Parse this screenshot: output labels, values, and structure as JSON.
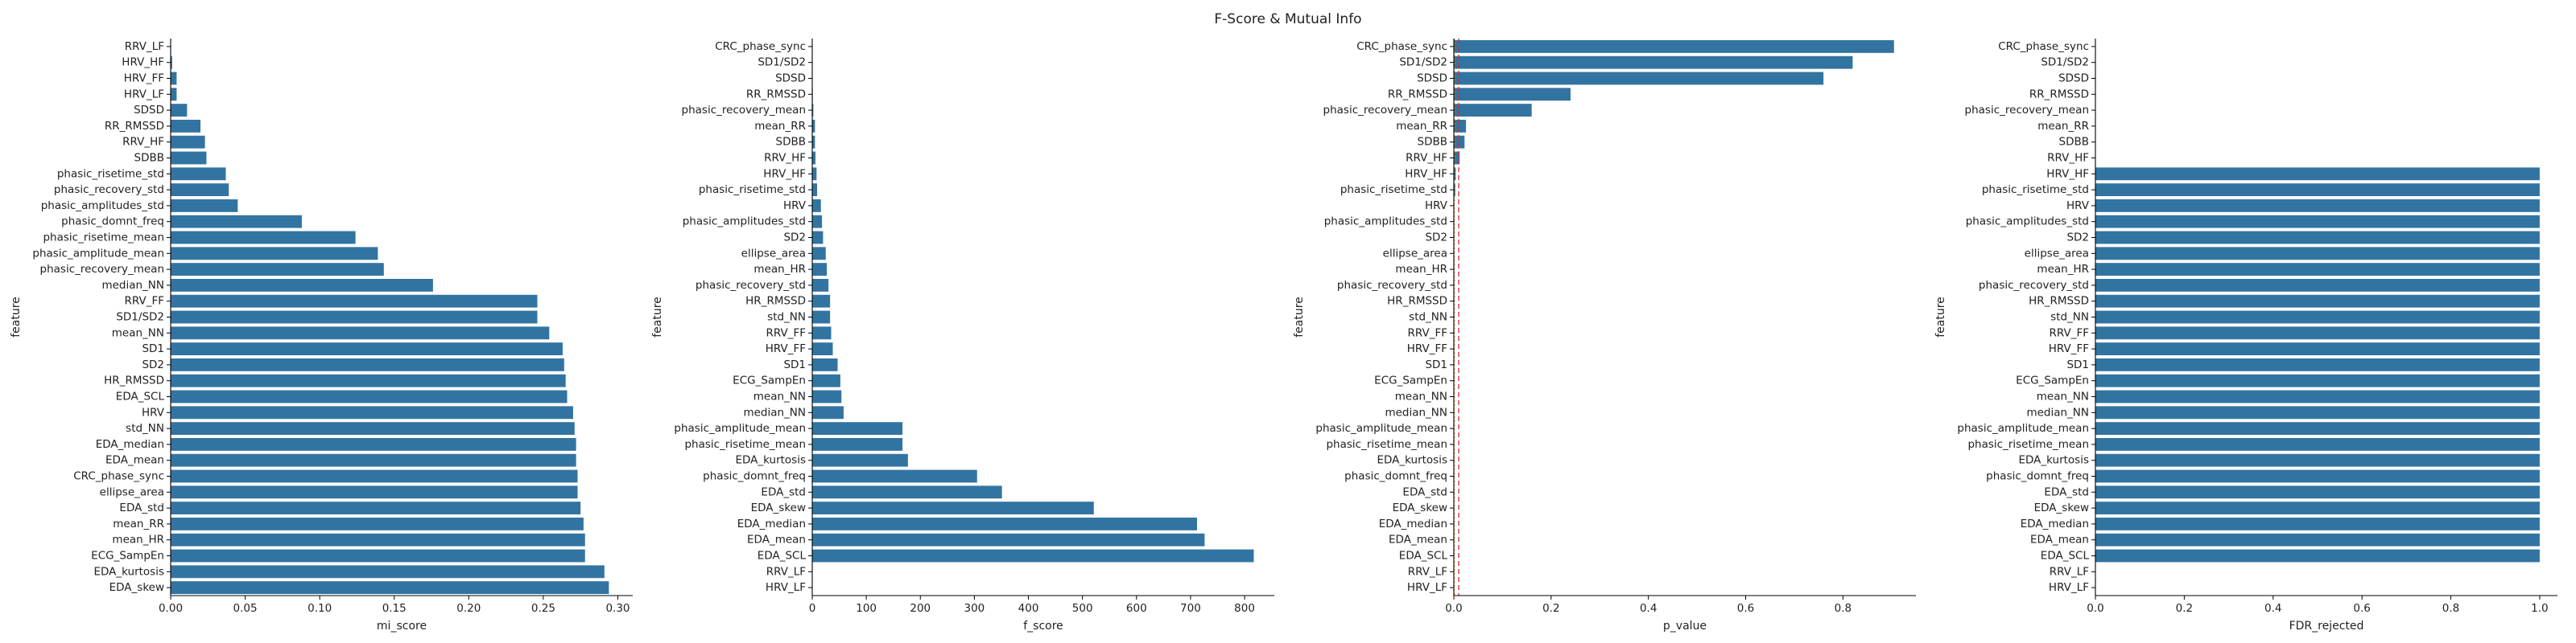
{
  "figure": {
    "title": "F-Score & Mutual Info"
  },
  "chart_data": [
    {
      "type": "bar",
      "orientation": "horizontal",
      "xlabel": "mi_score",
      "ylabel": "feature",
      "xlim": [
        0,
        0.31
      ],
      "xticks": [
        "0.00",
        "0.05",
        "0.10",
        "0.15",
        "0.20",
        "0.25",
        "0.30"
      ],
      "xtick_values": [
        0,
        0.05,
        0.1,
        0.15,
        0.2,
        0.25,
        0.3
      ],
      "color": "#3274a1",
      "categories": [
        "RRV_LF",
        "HRV_HF",
        "HRV_FF",
        "HRV_LF",
        "SDSD",
        "RR_RMSSD",
        "RRV_HF",
        "SDBB",
        "phasic_risetime_std",
        "phasic_recovery_std",
        "phasic_amplitudes_std",
        "phasic_domnt_freq",
        "phasic_risetime_mean",
        "phasic_amplitude_mean",
        "phasic_recovery_mean",
        "median_NN",
        "RRV_FF",
        "SD1/SD2",
        "mean_NN",
        "SD1",
        "SD2",
        "HR_RMSSD",
        "EDA_SCL",
        "HRV",
        "std_NN",
        "EDA_median",
        "EDA_mean",
        "CRC_phase_sync",
        "ellipse_area",
        "EDA_std",
        "mean_RR",
        "mean_HR",
        "ECG_SampEn",
        "EDA_kurtosis",
        "EDA_skew"
      ],
      "values": [
        0.0,
        0.001,
        0.004,
        0.004,
        0.011,
        0.02,
        0.023,
        0.024,
        0.037,
        0.039,
        0.045,
        0.088,
        0.124,
        0.139,
        0.143,
        0.176,
        0.246,
        0.246,
        0.254,
        0.263,
        0.264,
        0.265,
        0.266,
        0.27,
        0.271,
        0.272,
        0.272,
        0.273,
        0.273,
        0.275,
        0.277,
        0.278,
        0.278,
        0.291,
        0.294
      ]
    },
    {
      "type": "bar",
      "orientation": "horizontal",
      "xlabel": "f_score",
      "ylabel": "feature",
      "xlim": [
        0,
        855
      ],
      "xticks": [
        "0",
        "100",
        "200",
        "300",
        "400",
        "500",
        "600",
        "700",
        "800"
      ],
      "xtick_values": [
        0,
        100,
        200,
        300,
        400,
        500,
        600,
        700,
        800
      ],
      "color": "#3274a1",
      "categories": [
        "CRC_phase_sync",
        "SD1/SD2",
        "SDSD",
        "RR_RMSSD",
        "phasic_recovery_mean",
        "mean_RR",
        "SDBB",
        "RRV_HF",
        "HRV_HF",
        "phasic_risetime_std",
        "HRV",
        "phasic_amplitudes_std",
        "SD2",
        "ellipse_area",
        "mean_HR",
        "phasic_recovery_std",
        "HR_RMSSD",
        "std_NN",
        "RRV_FF",
        "HRV_FF",
        "SD1",
        "ECG_SampEn",
        "mean_NN",
        "median_NN",
        "phasic_amplitude_mean",
        "phasic_risetime_mean",
        "EDA_kurtosis",
        "phasic_domnt_freq",
        "EDA_std",
        "EDA_skew",
        "EDA_median",
        "EDA_mean",
        "EDA_SCL",
        "RRV_LF",
        "HRV_LF"
      ],
      "values": [
        0.01,
        0.1,
        0.2,
        1,
        2,
        5,
        5,
        6,
        8,
        9,
        16,
        18,
        20,
        25,
        27,
        30,
        33,
        33,
        35,
        38,
        47,
        52,
        54,
        58,
        167,
        167,
        177,
        305,
        351,
        521,
        712,
        726,
        817,
        0,
        0
      ]
    },
    {
      "type": "bar",
      "orientation": "horizontal",
      "xlabel": "p_value",
      "ylabel": "feature",
      "xlim": [
        0,
        0.95
      ],
      "xticks": [
        "0.0",
        "0.2",
        "0.4",
        "0.6",
        "0.8"
      ],
      "xtick_values": [
        0,
        0.2,
        0.4,
        0.6,
        0.8
      ],
      "color": "#3274a1",
      "reference_lines": [
        {
          "value": 0.01,
          "color": "#d62728",
          "style": "dashed"
        },
        {
          "value": 0.001,
          "color": "#ff7f0e",
          "style": "dotted"
        }
      ],
      "categories": [
        "CRC_phase_sync",
        "SD1/SD2",
        "SDSD",
        "RR_RMSSD",
        "phasic_recovery_mean",
        "mean_RR",
        "SDBB",
        "RRV_HF",
        "HRV_HF",
        "phasic_risetime_std",
        "HRV",
        "phasic_amplitudes_std",
        "SD2",
        "ellipse_area",
        "mean_HR",
        "phasic_recovery_std",
        "HR_RMSSD",
        "std_NN",
        "RRV_FF",
        "HRV_FF",
        "SD1",
        "ECG_SampEn",
        "mean_NN",
        "median_NN",
        "phasic_amplitude_mean",
        "phasic_risetime_mean",
        "EDA_kurtosis",
        "phasic_domnt_freq",
        "EDA_std",
        "EDA_skew",
        "EDA_median",
        "EDA_mean",
        "EDA_SCL",
        "RRV_LF",
        "HRV_LF"
      ],
      "values": [
        0.905,
        0.82,
        0.76,
        0.24,
        0.16,
        0.025,
        0.022,
        0.012,
        0.004,
        0.003,
        0.0001,
        0.0,
        0.0,
        0.0,
        0.0,
        0.0,
        0.0,
        0.0,
        0.0,
        0.0,
        0.0,
        0.0,
        0.0,
        0.0,
        0.0,
        0.0,
        0.0,
        0.0,
        0.0,
        0.0,
        0.0,
        0.0,
        0.0,
        0.0,
        0.0
      ]
    },
    {
      "type": "bar",
      "orientation": "horizontal",
      "xlabel": "FDR_rejected",
      "ylabel": "feature",
      "xlim": [
        0,
        1.04
      ],
      "xticks": [
        "0.0",
        "0.2",
        "0.4",
        "0.6",
        "0.8",
        "1.0"
      ],
      "xtick_values": [
        0,
        0.2,
        0.4,
        0.6,
        0.8,
        1.0
      ],
      "color": "#3274a1",
      "categories": [
        "CRC_phase_sync",
        "SD1/SD2",
        "SDSD",
        "RR_RMSSD",
        "phasic_recovery_mean",
        "mean_RR",
        "SDBB",
        "RRV_HF",
        "HRV_HF",
        "phasic_risetime_std",
        "HRV",
        "phasic_amplitudes_std",
        "SD2",
        "ellipse_area",
        "mean_HR",
        "phasic_recovery_std",
        "HR_RMSSD",
        "std_NN",
        "RRV_FF",
        "HRV_FF",
        "SD1",
        "ECG_SampEn",
        "mean_NN",
        "median_NN",
        "phasic_amplitude_mean",
        "phasic_risetime_mean",
        "EDA_kurtosis",
        "phasic_domnt_freq",
        "EDA_std",
        "EDA_skew",
        "EDA_median",
        "EDA_mean",
        "EDA_SCL",
        "RRV_LF",
        "HRV_LF"
      ],
      "values": [
        0,
        0,
        0,
        0,
        0,
        0,
        0,
        0,
        1,
        1,
        1,
        1,
        1,
        1,
        1,
        1,
        1,
        1,
        1,
        1,
        1,
        1,
        1,
        1,
        1,
        1,
        1,
        1,
        1,
        1,
        1,
        1,
        1,
        0,
        0
      ]
    }
  ]
}
